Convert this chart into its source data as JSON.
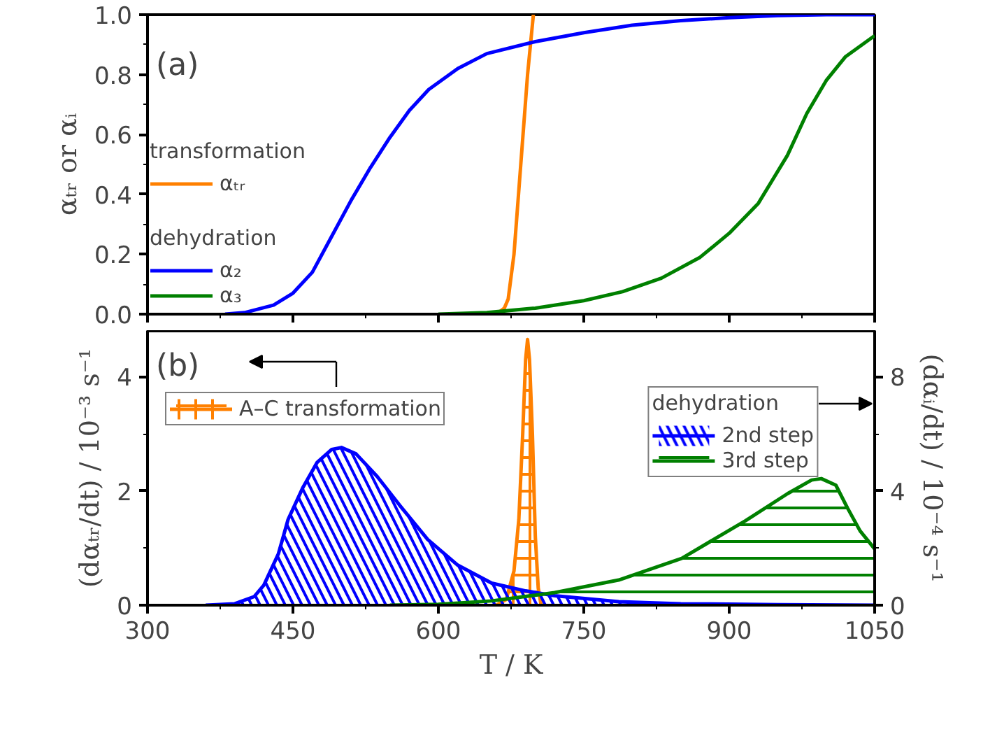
{
  "chart_data": [
    {
      "type": "line",
      "ylabel": "αₜᵣ or αᵢ",
      "xlim": [
        300,
        1050
      ],
      "xticks": [
        300,
        450,
        600,
        750,
        900,
        1050
      ],
      "ylim": [
        0,
        1
      ],
      "yticks": [
        {
          "value": 0,
          "label": "0.0"
        },
        0.2,
        0.4,
        0.6,
        0.8,
        {
          "value": 1,
          "label": "1.0"
        }
      ],
      "tick_labels": "y",
      "grid": false,
      "legend": "left",
      "annotations": [
        "(a)",
        "transformation",
        "dehydration"
      ],
      "series": [
        {
          "name": "αₜᵣ",
          "color": "#ff8000",
          "x": [
            660,
            668,
            672,
            678,
            685,
            692,
            698
          ],
          "values": [
            0,
            0.02,
            0.05,
            0.2,
            0.5,
            0.8,
            1.0
          ]
        },
        {
          "name": "α₂",
          "color": "#0000ff",
          "x": [
            380,
            400,
            430,
            450,
            470,
            490,
            510,
            530,
            550,
            570,
            590,
            620,
            650,
            700,
            750,
            800,
            850,
            900,
            950,
            1000,
            1050
          ],
          "values": [
            0,
            0.005,
            0.03,
            0.07,
            0.14,
            0.26,
            0.38,
            0.49,
            0.59,
            0.68,
            0.75,
            0.82,
            0.87,
            0.91,
            0.94,
            0.965,
            0.98,
            0.99,
            0.997,
            1.0,
            1.0
          ]
        },
        {
          "name": "α₃",
          "color": "#008000",
          "x": [
            600,
            650,
            700,
            750,
            790,
            830,
            870,
            900,
            930,
            960,
            980,
            1000,
            1020,
            1050
          ],
          "values": [
            0,
            0.005,
            0.02,
            0.045,
            0.075,
            0.12,
            0.19,
            0.27,
            0.37,
            0.53,
            0.67,
            0.78,
            0.86,
            0.93
          ]
        }
      ]
    },
    {
      "type": "area",
      "xlabel": "T / K",
      "ylabel": "(dαₜᵣ/dt) / 10⁻³ s⁻¹",
      "y2label": "(dαᵢ/dt) / 10⁻⁴ s⁻¹",
      "xlim": [
        300,
        1050
      ],
      "xticks": [
        300,
        450,
        600,
        750,
        900,
        1050
      ],
      "ylim": [
        0,
        4.8
      ],
      "yticks": [
        0,
        2,
        4
      ],
      "y2lim": [
        0,
        9.6
      ],
      "y2ticks": [
        0,
        4,
        8
      ],
      "grid": false,
      "legend": "top right",
      "legend_title": "dehydration",
      "annotations": [
        "(b)"
      ],
      "series": [
        {
          "name": "A–C transformation",
          "color": "#ff8000",
          "x": [
            660,
            670,
            678,
            683,
            687,
            690,
            692,
            694,
            697,
            700,
            703,
            706
          ],
          "values": [
            0,
            0.1,
            0.6,
            1.5,
            3.0,
            4.3,
            4.65,
            4.3,
            3.0,
            1.2,
            0.3,
            0
          ]
        },
        {
          "name": "2nd step",
          "color": "#0000ff",
          "axis": "y2",
          "x": [
            360,
            390,
            410,
            420,
            435,
            445,
            460,
            475,
            490,
            500,
            515,
            537,
            560,
            589,
            620,
            655,
            690,
            720,
            786,
            850,
            950,
            1050
          ],
          "values": [
            0,
            0.05,
            0.3,
            0.7,
            1.8,
            3.0,
            4.1,
            5.0,
            5.45,
            5.52,
            5.3,
            4.5,
            3.5,
            2.3,
            1.4,
            0.77,
            0.5,
            0.33,
            0.12,
            0.05,
            0.02,
            0
          ]
        },
        {
          "name": "3rd step",
          "color": "#008000",
          "axis": "y2",
          "x": [
            550,
            600,
            655,
            720,
            786,
            851,
            917,
            960,
            985,
            995,
            1010,
            1022,
            1035,
            1050
          ],
          "values": [
            0,
            0.03,
            0.15,
            0.44,
            0.88,
            1.64,
            2.96,
            3.9,
            4.38,
            4.43,
            4.2,
            3.4,
            2.6,
            1.97
          ]
        }
      ]
    }
  ]
}
